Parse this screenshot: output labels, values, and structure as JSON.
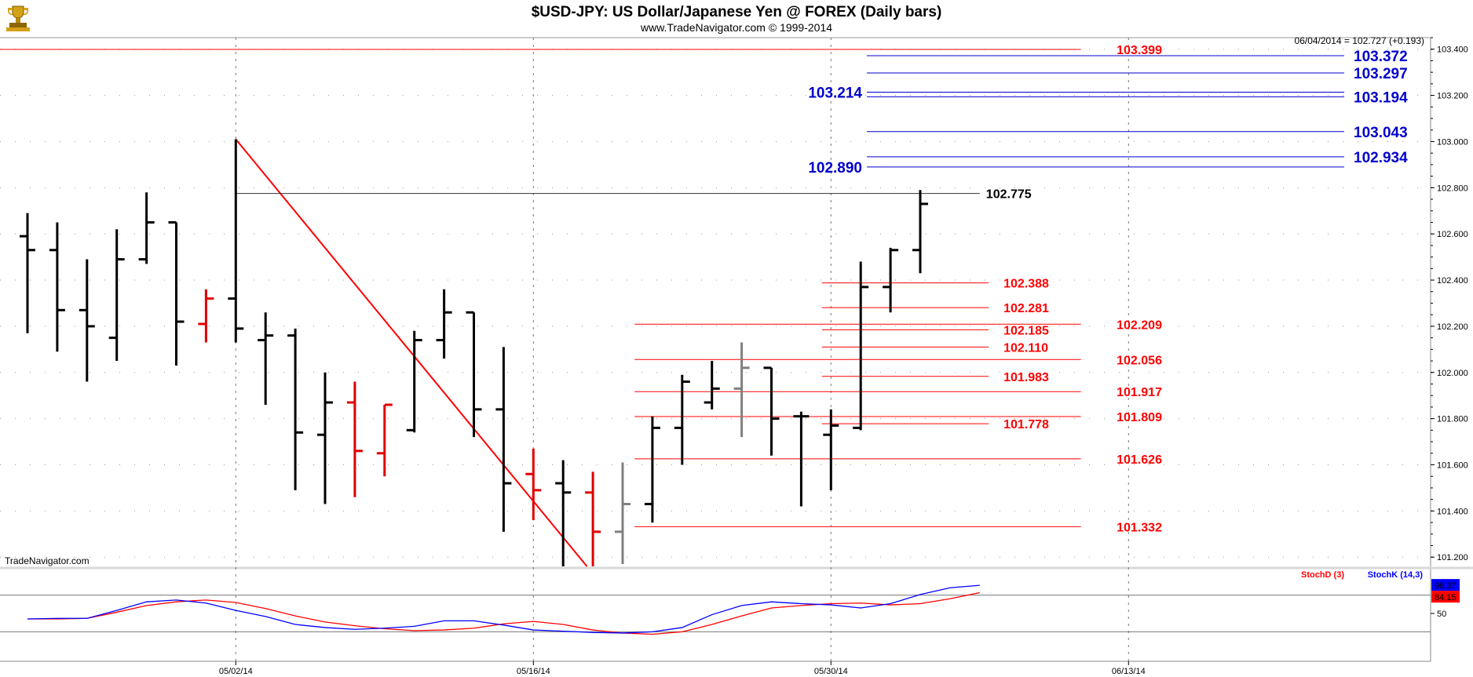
{
  "header": {
    "title": "$USD-JPY:  US Dollar/Japanese Yen @ FOREX  (Daily bars)",
    "subtitle": "www.TradeNavigator.com © 1999-2014",
    "quote": "06/04/2014 = 102.727 (+0.193)",
    "watermark": "TradeNavigator.com",
    "logo_icon": "trophy-icon"
  },
  "colors": {
    "black_bar": "#000000",
    "red_bar": "#e00000",
    "gray_bar": "#808080",
    "red_level": "#ff0000",
    "blue_level": "#0000cc",
    "stoch_k": "#0000ff",
    "stoch_d": "#ff0000"
  },
  "chart_data": [
    {
      "type": "ohlc",
      "title": "$USD-JPY:  US Dollar/Japanese Yen @ FOREX  (Daily bars)",
      "ylim": [
        101.16,
        103.45
      ],
      "yticks": [
        "101.200",
        "101.400",
        "101.600",
        "101.800",
        "102.000",
        "102.200",
        "102.400",
        "102.600",
        "102.800",
        "103.000",
        "103.200",
        "103.400"
      ],
      "yticks_values": [
        101.2,
        101.4,
        101.6,
        101.8,
        102.0,
        102.2,
        102.4,
        102.6,
        102.8,
        103.0,
        103.2,
        103.4
      ],
      "xticks": [
        {
          "label": "05/02/14",
          "index": 7
        },
        {
          "label": "05/16/14",
          "index": 17
        },
        {
          "label": "05/30/14",
          "index": 27
        },
        {
          "label": "06/13/14",
          "index": 37
        }
      ],
      "bars": [
        {
          "o": 102.59,
          "h": 102.69,
          "l": 102.17,
          "c": 102.53,
          "color": "black"
        },
        {
          "o": 102.53,
          "h": 102.65,
          "l": 102.09,
          "c": 102.27,
          "color": "black"
        },
        {
          "o": 102.27,
          "h": 102.49,
          "l": 101.96,
          "c": 102.2,
          "color": "black"
        },
        {
          "o": 102.15,
          "h": 102.62,
          "l": 102.05,
          "c": 102.49,
          "color": "black"
        },
        {
          "o": 102.49,
          "h": 102.78,
          "l": 102.47,
          "c": 102.65,
          "color": "black"
        },
        {
          "o": 102.65,
          "h": 102.65,
          "l": 102.03,
          "c": 102.22,
          "color": "black"
        },
        {
          "o": 102.21,
          "h": 102.36,
          "l": 102.13,
          "c": 102.32,
          "color": "red"
        },
        {
          "o": 102.32,
          "h": 103.01,
          "l": 102.13,
          "c": 102.19,
          "color": "black"
        },
        {
          "o": 102.14,
          "h": 102.26,
          "l": 101.86,
          "c": 102.16,
          "color": "black"
        },
        {
          "o": 102.16,
          "h": 102.19,
          "l": 101.49,
          "c": 101.74,
          "color": "black"
        },
        {
          "o": 101.73,
          "h": 102.0,
          "l": 101.43,
          "c": 101.87,
          "color": "black"
        },
        {
          "o": 101.87,
          "h": 101.96,
          "l": 101.46,
          "c": 101.66,
          "color": "red"
        },
        {
          "o": 101.65,
          "h": 101.86,
          "l": 101.55,
          "c": 101.86,
          "color": "red"
        },
        {
          "o": 101.75,
          "h": 102.18,
          "l": 101.74,
          "c": 102.14,
          "color": "black"
        },
        {
          "o": 102.14,
          "h": 102.36,
          "l": 102.06,
          "c": 102.26,
          "color": "black"
        },
        {
          "o": 102.26,
          "h": 102.26,
          "l": 101.72,
          "c": 101.84,
          "color": "black"
        },
        {
          "o": 101.84,
          "h": 102.11,
          "l": 101.31,
          "c": 101.52,
          "color": "black"
        },
        {
          "o": 101.56,
          "h": 101.67,
          "l": 101.36,
          "c": 101.49,
          "color": "red"
        },
        {
          "o": 101.52,
          "h": 101.62,
          "l": 101.13,
          "c": 101.48,
          "color": "black"
        },
        {
          "o": 101.48,
          "h": 101.57,
          "l": 101.13,
          "c": 101.31,
          "color": "red"
        },
        {
          "o": 101.31,
          "h": 101.61,
          "l": 101.17,
          "c": 101.43,
          "color": "gray"
        },
        {
          "o": 101.43,
          "h": 101.81,
          "l": 101.35,
          "c": 101.76,
          "color": "black"
        },
        {
          "o": 101.76,
          "h": 101.99,
          "l": 101.6,
          "c": 101.96,
          "color": "black"
        },
        {
          "o": 101.87,
          "h": 102.05,
          "l": 101.84,
          "c": 101.93,
          "color": "black"
        },
        {
          "o": 101.93,
          "h": 102.13,
          "l": 101.72,
          "c": 102.02,
          "color": "gray"
        },
        {
          "o": 102.02,
          "h": 102.02,
          "l": 101.64,
          "c": 101.8,
          "color": "black"
        },
        {
          "o": 101.81,
          "h": 101.83,
          "l": 101.42,
          "c": 101.81,
          "color": "black"
        },
        {
          "o": 101.73,
          "h": 101.84,
          "l": 101.49,
          "c": 101.77,
          "color": "black"
        },
        {
          "o": 101.76,
          "h": 102.48,
          "l": 101.75,
          "c": 102.37,
          "color": "black"
        },
        {
          "o": 102.37,
          "h": 102.54,
          "l": 102.26,
          "c": 102.53,
          "color": "black"
        },
        {
          "o": 102.53,
          "h": 102.79,
          "l": 102.43,
          "c": 102.73,
          "color": "black"
        }
      ],
      "trendline": {
        "from_index": 7,
        "from_value": 103.01,
        "to_index": 18.8,
        "to_value": 101.16
      },
      "hline_resistance": {
        "from_index": 7,
        "to_index": 32,
        "value": 102.775,
        "label": "102.775"
      },
      "levels_red": [
        {
          "value": 103.399,
          "label": "103.399",
          "from_index": -1,
          "to_index": 35.4,
          "label_index": 36.6
        },
        {
          "value": 102.388,
          "label": "102.388",
          "from_index": 26.7,
          "to_index": 32.3,
          "label_index": 32.8
        },
        {
          "value": 102.281,
          "label": "102.281",
          "from_index": 26.7,
          "to_index": 32.3,
          "label_index": 32.8
        },
        {
          "value": 102.209,
          "label": "102.209",
          "from_index": 20.4,
          "to_index": 35.4,
          "label_index": 36.6
        },
        {
          "value": 102.185,
          "label": "102.185",
          "from_index": 26.7,
          "to_index": 32.3,
          "label_index": 32.8
        },
        {
          "value": 102.11,
          "label": "102.110",
          "from_index": 26.7,
          "to_index": 32.3,
          "label_index": 32.8
        },
        {
          "value": 102.056,
          "label": "102.056",
          "from_index": 20.4,
          "to_index": 35.4,
          "label_index": 36.6
        },
        {
          "value": 101.983,
          "label": "101.983",
          "from_index": 26.7,
          "to_index": 32.3,
          "label_index": 32.8
        },
        {
          "value": 101.917,
          "label": "101.917",
          "from_index": 20.4,
          "to_index": 35.4,
          "label_index": 36.6
        },
        {
          "value": 101.809,
          "label": "101.809",
          "from_index": 20.4,
          "to_index": 35.4,
          "label_index": 36.6
        },
        {
          "value": 101.778,
          "label": "101.778",
          "from_index": 26.7,
          "to_index": 32.3,
          "label_index": 32.8
        },
        {
          "value": 101.626,
          "label": "101.626",
          "from_index": 20.4,
          "to_index": 35.4,
          "label_index": 36.6
        },
        {
          "value": 101.332,
          "label": "101.332",
          "from_index": 20.4,
          "to_index": 35.4,
          "label_index": 36.6
        }
      ],
      "levels_blue_right": [
        {
          "value": 103.372,
          "label": "103.372"
        },
        {
          "value": 103.297,
          "label": "103.297"
        },
        {
          "value": 103.194,
          "label": "103.194"
        },
        {
          "value": 103.043,
          "label": "103.043"
        },
        {
          "value": 102.934,
          "label": "102.934"
        }
      ],
      "levels_blue_left": [
        {
          "value": 103.214,
          "label": "103.214"
        },
        {
          "value": 102.89,
          "label": "102.890"
        }
      ]
    },
    {
      "type": "line",
      "title": "",
      "ylim": [
        0,
        100
      ],
      "yticks": [
        "50"
      ],
      "yticks_values": [
        50
      ],
      "reference_lines": [
        80,
        20
      ],
      "series": [
        {
          "name": "StochD (3)",
          "values": [
            41,
            41,
            42,
            52,
            63,
            69,
            72,
            68,
            58,
            46,
            36,
            30,
            25,
            22,
            23,
            26,
            33,
            37,
            32,
            23,
            18,
            16,
            20,
            32,
            46,
            59,
            63,
            66,
            67,
            64,
            66,
            74,
            84
          ]
        },
        {
          "name": "StochK (14,3)",
          "values": [
            41,
            42,
            42,
            55,
            69,
            72,
            67,
            55,
            45,
            32,
            27,
            24,
            26,
            29,
            38,
            38,
            31,
            23,
            21,
            19,
            18,
            20,
            27,
            48,
            63,
            69,
            66,
            64,
            59,
            66,
            81,
            92,
            96
          ]
        }
      ],
      "last_values": {
        "stoch_k": "96.37",
        "stoch_d": "84.15"
      }
    }
  ]
}
